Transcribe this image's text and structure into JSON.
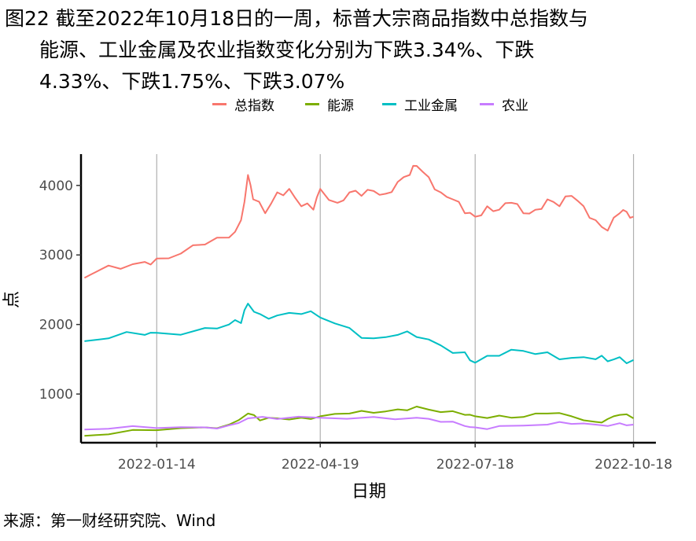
{
  "title": {
    "line1": "图22 截至2022年10月18日的一周，标普大宗商品指数中总指数与",
    "line2": "能源、工业金属及农业指数变化分别为下跌3.34%、下跌",
    "line3": "4.33%、下跌1.75%、下跌3.07%"
  },
  "source": "来源：第一财经研究院、Wind",
  "chart_data": {
    "type": "line",
    "xlabel": "日期",
    "ylabel": "点",
    "x_ticks": [
      "2022-01-14",
      "2022-04-19",
      "2022-07-18",
      "2022-10-18"
    ],
    "y_ticks": [
      1000,
      2000,
      3000,
      4000
    ],
    "xlim": [
      "2021-12-01",
      "2022-10-31"
    ],
    "ylim": [
      300,
      4450
    ],
    "grid": "vertical major lines only",
    "legend_position": "top",
    "series": [
      {
        "name": "总指数",
        "color": "#F8766D",
        "points": [
          [
            "2021-12-03",
            2670
          ],
          [
            "2021-12-10",
            2760
          ],
          [
            "2021-12-24",
            2800
          ],
          [
            "2022-01-07",
            2900
          ],
          [
            "2022-01-14",
            2950
          ],
          [
            "2022-01-28",
            3020
          ],
          [
            "2022-02-11",
            3150
          ],
          [
            "2022-02-25",
            3250
          ],
          [
            "2022-03-04",
            3500
          ],
          [
            "2022-03-08",
            4150
          ],
          [
            "2022-03-11",
            3800
          ],
          [
            "2022-03-18",
            3600
          ],
          [
            "2022-03-25",
            3900
          ],
          [
            "2022-04-01",
            3950
          ],
          [
            "2022-04-08",
            3700
          ],
          [
            "2022-04-15",
            3650
          ],
          [
            "2022-04-19",
            3950
          ],
          [
            "2022-04-29",
            3750
          ],
          [
            "2022-05-06",
            3900
          ],
          [
            "2022-05-13",
            3850
          ],
          [
            "2022-05-20",
            3920
          ],
          [
            "2022-05-27",
            3880
          ],
          [
            "2022-06-03",
            4050
          ],
          [
            "2022-06-10",
            4150
          ],
          [
            "2022-06-14",
            4280
          ],
          [
            "2022-06-21",
            4120
          ],
          [
            "2022-06-28",
            3900
          ],
          [
            "2022-07-05",
            3800
          ],
          [
            "2022-07-12",
            3600
          ],
          [
            "2022-07-18",
            3550
          ],
          [
            "2022-07-25",
            3700
          ],
          [
            "2022-08-01",
            3650
          ],
          [
            "2022-08-08",
            3750
          ],
          [
            "2022-08-15",
            3600
          ],
          [
            "2022-08-22",
            3650
          ],
          [
            "2022-08-29",
            3800
          ],
          [
            "2022-09-05",
            3700
          ],
          [
            "2022-09-12",
            3850
          ],
          [
            "2022-09-19",
            3700
          ],
          [
            "2022-09-26",
            3500
          ],
          [
            "2022-10-03",
            3350
          ],
          [
            "2022-10-10",
            3600
          ],
          [
            "2022-10-14",
            3620
          ],
          [
            "2022-10-18",
            3550
          ]
        ]
      },
      {
        "name": "能源",
        "color": "#7CAE00",
        "points": [
          [
            "2021-12-03",
            400
          ],
          [
            "2021-12-17",
            420
          ],
          [
            "2022-01-14",
            480
          ],
          [
            "2022-02-11",
            520
          ],
          [
            "2022-02-25",
            560
          ],
          [
            "2022-03-08",
            720
          ],
          [
            "2022-03-15",
            620
          ],
          [
            "2022-03-25",
            650
          ],
          [
            "2022-04-08",
            660
          ],
          [
            "2022-04-19",
            680
          ],
          [
            "2022-05-06",
            720
          ],
          [
            "2022-05-20",
            730
          ],
          [
            "2022-06-03",
            780
          ],
          [
            "2022-06-14",
            820
          ],
          [
            "2022-06-28",
            740
          ],
          [
            "2022-07-12",
            700
          ],
          [
            "2022-07-18",
            680
          ],
          [
            "2022-08-01",
            690
          ],
          [
            "2022-08-15",
            670
          ],
          [
            "2022-08-29",
            720
          ],
          [
            "2022-09-12",
            680
          ],
          [
            "2022-09-26",
            600
          ],
          [
            "2022-10-03",
            640
          ],
          [
            "2022-10-10",
            700
          ],
          [
            "2022-10-18",
            650
          ]
        ]
      },
      {
        "name": "工业金属",
        "color": "#00BFC4",
        "points": [
          [
            "2021-12-03",
            1760
          ],
          [
            "2021-12-17",
            1800
          ],
          [
            "2022-01-07",
            1850
          ],
          [
            "2022-01-14",
            1880
          ],
          [
            "2022-02-11",
            1950
          ],
          [
            "2022-02-25",
            2000
          ],
          [
            "2022-03-04",
            2020
          ],
          [
            "2022-03-08",
            2300
          ],
          [
            "2022-03-15",
            2150
          ],
          [
            "2022-03-25",
            2130
          ],
          [
            "2022-04-08",
            2150
          ],
          [
            "2022-04-19",
            2100
          ],
          [
            "2022-05-06",
            1950
          ],
          [
            "2022-05-20",
            1800
          ],
          [
            "2022-06-03",
            1850
          ],
          [
            "2022-06-14",
            1820
          ],
          [
            "2022-06-28",
            1700
          ],
          [
            "2022-07-12",
            1600
          ],
          [
            "2022-07-18",
            1450
          ],
          [
            "2022-08-01",
            1550
          ],
          [
            "2022-08-15",
            1620
          ],
          [
            "2022-08-29",
            1600
          ],
          [
            "2022-09-12",
            1520
          ],
          [
            "2022-09-26",
            1500
          ],
          [
            "2022-10-03",
            1470
          ],
          [
            "2022-10-10",
            1530
          ],
          [
            "2022-10-18",
            1490
          ]
        ]
      },
      {
        "name": "农业",
        "color": "#C77CFF",
        "points": [
          [
            "2021-12-03",
            490
          ],
          [
            "2021-12-17",
            500
          ],
          [
            "2022-01-14",
            510
          ],
          [
            "2022-02-11",
            520
          ],
          [
            "2022-02-25",
            550
          ],
          [
            "2022-03-08",
            650
          ],
          [
            "2022-03-25",
            640
          ],
          [
            "2022-04-19",
            660
          ],
          [
            "2022-05-20",
            670
          ],
          [
            "2022-06-14",
            660
          ],
          [
            "2022-06-28",
            600
          ],
          [
            "2022-07-12",
            540
          ],
          [
            "2022-07-18",
            520
          ],
          [
            "2022-08-01",
            540
          ],
          [
            "2022-08-29",
            560
          ],
          [
            "2022-09-12",
            570
          ],
          [
            "2022-09-26",
            560
          ],
          [
            "2022-10-10",
            580
          ],
          [
            "2022-10-18",
            560
          ]
        ]
      }
    ]
  }
}
